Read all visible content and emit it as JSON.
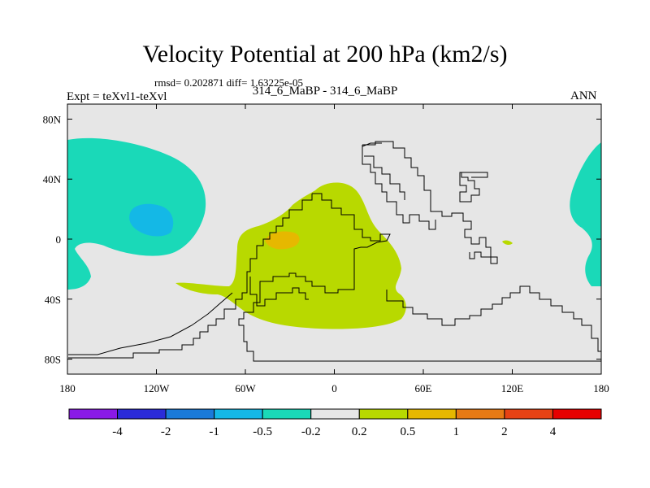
{
  "title": "Velocity Potential at 200 hPa (km2/s)",
  "stats": "rmsd= 0.202871  diff= 1.63225e-05",
  "experiment": "Expt = teXvl1-teXvl",
  "case": "314_6_MaBP - 314_6_MaBP",
  "season": "ANN",
  "map": {
    "lat_ticks": [
      {
        "label": "80N",
        "value": 80
      },
      {
        "label": "40N",
        "value": 40
      },
      {
        "label": "0",
        "value": 0
      },
      {
        "label": "40S",
        "value": -40
      },
      {
        "label": "80S",
        "value": -80
      }
    ],
    "lon_ticks": [
      {
        "label": "180",
        "value": -180
      },
      {
        "label": "120W",
        "value": -120
      },
      {
        "label": "60W",
        "value": -60
      },
      {
        "label": "0",
        "value": 0
      },
      {
        "label": "60E",
        "value": 60
      },
      {
        "label": "120E",
        "value": 120
      },
      {
        "label": "180",
        "value": 180
      }
    ],
    "lat_range": [
      -90,
      90
    ],
    "lon_range": [
      -180,
      180
    ],
    "background_color": "#e6e6e6"
  },
  "colorbar": {
    "colors": [
      "#8a1ae6",
      "#2b2bd9",
      "#1a7ad9",
      "#14b8e6",
      "#1ad9b8",
      "#e6e6e6",
      "#b8d900",
      "#e6b800",
      "#e67a14",
      "#e64214",
      "#e60000"
    ],
    "labels": [
      "-4",
      "-2",
      "-1",
      "-0.5",
      "-0.2",
      "0.2",
      "0.5",
      "1",
      "2",
      "4"
    ]
  }
}
